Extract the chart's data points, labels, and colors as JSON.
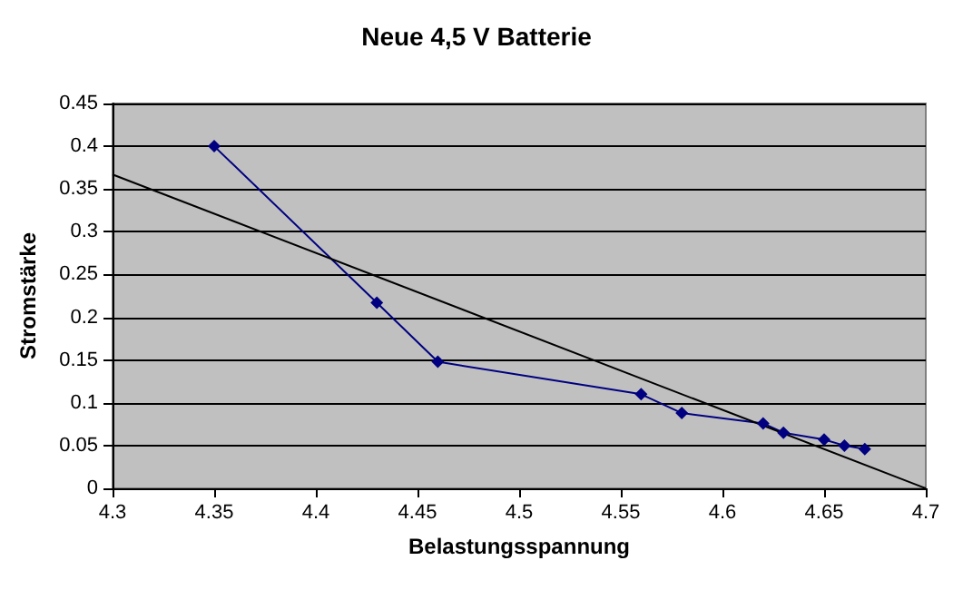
{
  "chart_data": {
    "type": "line",
    "title": "Neue 4,5 V Batterie",
    "xlabel": "Belastungsspannung",
    "ylabel": "Stromstärke",
    "series": [
      {
        "color": "#000080",
        "marker": "diamond",
        "x": [
          4.35,
          4.43,
          4.46,
          4.56,
          4.58,
          4.62,
          4.63,
          4.65,
          4.66,
          4.67
        ],
        "values": [
          0.4,
          0.217,
          0.148,
          0.11,
          0.088,
          0.076,
          0.065,
          0.057,
          0.05,
          0.046
        ]
      },
      {
        "color": "#000000",
        "marker": "none",
        "x": [
          4.3,
          4.7
        ],
        "values": [
          0.367,
          0
        ]
      }
    ],
    "xlim": [
      4.3,
      4.7
    ],
    "xticks": [
      4.3,
      4.35,
      4.4,
      4.45,
      4.5,
      4.55,
      4.6,
      4.65,
      4.7
    ],
    "ylim": [
      0,
      0.45
    ],
    "yticks": [
      0,
      0.05,
      0.1,
      0.15,
      0.2,
      0.25,
      0.3,
      0.35,
      0.4,
      0.45
    ],
    "grid": "y"
  }
}
